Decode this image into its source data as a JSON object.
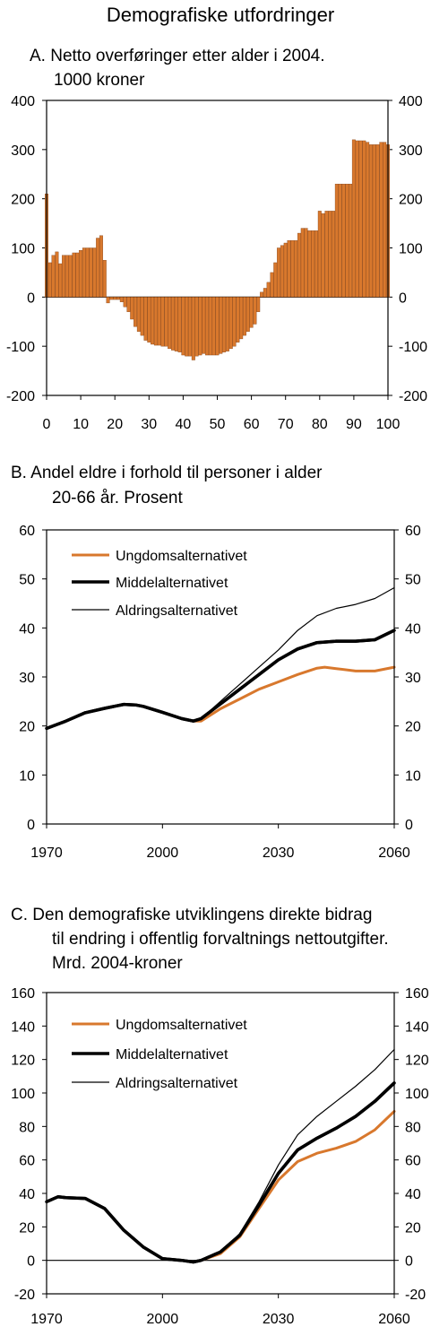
{
  "title": "Demografiske utfordringer",
  "charts": [
    {
      "id": "A",
      "title_lines": [
        "A.  Netto overføringer etter alder i 2004.",
        "1000 kroner"
      ],
      "chart_data": {
        "type": "bar",
        "xlabel": "",
        "ylabel": "",
        "xlim": [
          0,
          100
        ],
        "ylim": [
          -200,
          400
        ],
        "y_ticks": [
          -200,
          -100,
          0,
          100,
          200,
          300,
          400
        ],
        "x_ticks": [
          0,
          10,
          20,
          30,
          40,
          50,
          60,
          70,
          80,
          90,
          100
        ],
        "grid": false,
        "values": [
          210,
          70,
          85,
          92,
          68,
          85,
          85,
          85,
          90,
          90,
          95,
          100,
          100,
          100,
          100,
          120,
          125,
          75,
          -12,
          -5,
          -5,
          -5,
          -10,
          -20,
          -30,
          -45,
          -60,
          -70,
          -78,
          -88,
          -92,
          -96,
          -98,
          -98,
          -100,
          -100,
          -105,
          -108,
          -110,
          -112,
          -118,
          -120,
          -120,
          -128,
          -120,
          -118,
          -115,
          -118,
          -118,
          -118,
          -118,
          -115,
          -112,
          -110,
          -105,
          -100,
          -92,
          -85,
          -78,
          -70,
          -62,
          -55,
          -30,
          10,
          18,
          30,
          50,
          70,
          100,
          105,
          110,
          115,
          115,
          115,
          130,
          140,
          140,
          135,
          135,
          135,
          175,
          170,
          175,
          175,
          175,
          230,
          230,
          230,
          230,
          230,
          320,
          318,
          318,
          318,
          315,
          310,
          310,
          310,
          315,
          315,
          310
        ],
        "color": "#D8782D"
      }
    },
    {
      "id": "B",
      "title_lines": [
        "B.  Andel eldre i forhold til personer i alder",
        "20-66 år. Prosent"
      ],
      "chart_data": {
        "type": "line",
        "xlabel": "",
        "ylabel": "",
        "xlim": [
          1970,
          2060
        ],
        "ylim": [
          0,
          60
        ],
        "y_ticks": [
          0,
          10,
          20,
          30,
          40,
          50,
          60
        ],
        "x_ticks": [
          1970,
          2000,
          2030,
          2060
        ],
        "grid": false,
        "legend_position": "top-left",
        "series": [
          {
            "name": "Ungdomsalternativet",
            "color": "#D8782D",
            "width": 3,
            "x": [
              2008,
              2010,
              2015,
              2020,
              2025,
              2030,
              2035,
              2040,
              2042,
              2045,
              2050,
              2055,
              2060
            ],
            "y": [
              21,
              21,
              23.5,
              25.5,
              27.5,
              29,
              30.5,
              31.8,
              32,
              31.7,
              31.2,
              31.2,
              32
            ]
          },
          {
            "name": "Middelalternativet",
            "color": "#000000",
            "width": 3.5,
            "x": [
              1970,
              1975,
              1980,
              1985,
              1990,
              1993,
              1995,
              2000,
              2005,
              2008,
              2010,
              2015,
              2020,
              2025,
              2030,
              2035,
              2040,
              2045,
              2050,
              2055,
              2060
            ],
            "y": [
              19.5,
              21,
              22.7,
              23.6,
              24.4,
              24.3,
              24,
              22.8,
              21.5,
              21,
              21.5,
              24.5,
              27.5,
              30.5,
              33.5,
              35.7,
              37,
              37.3,
              37.3,
              37.6,
              39.5
            ]
          },
          {
            "name": "Aldringsalternativet",
            "color": "#000000",
            "width": 1.2,
            "x": [
              2008,
              2010,
              2015,
              2020,
              2025,
              2030,
              2035,
              2040,
              2045,
              2050,
              2055,
              2060
            ],
            "y": [
              21,
              21.5,
              25,
              28.5,
              32,
              35.5,
              39.5,
              42.5,
              44,
              44.8,
              46,
              48.2
            ]
          }
        ]
      }
    },
    {
      "id": "C",
      "title_lines": [
        "C.  Den demografiske utviklingens direkte bidrag",
        "til endring i offentlig forvaltnings nettoutgifter.",
        "Mrd. 2004-kroner"
      ],
      "chart_data": {
        "type": "line",
        "xlabel": "",
        "ylabel": "",
        "xlim": [
          1970,
          2060
        ],
        "ylim": [
          -20,
          160
        ],
        "y_ticks": [
          -20,
          0,
          20,
          40,
          60,
          80,
          100,
          120,
          140,
          160
        ],
        "x_ticks": [
          1970,
          2000,
          2030,
          2060
        ],
        "grid": false,
        "legend_position": "top-left",
        "series": [
          {
            "name": "Ungdomsalternativet",
            "color": "#D8782D",
            "width": 3,
            "x": [
              2010,
              2015,
              2020,
              2025,
              2030,
              2035,
              2040,
              2045,
              2050,
              2055,
              2060
            ],
            "y": [
              0,
              4,
              14,
              31,
              48,
              59,
              64,
              67,
              71,
              78,
              89
            ]
          },
          {
            "name": "Middelalternativet",
            "color": "#000000",
            "width": 3.5,
            "x": [
              1970,
              1973,
              1975,
              1980,
              1985,
              1990,
              1995,
              2000,
              2005,
              2008,
              2010,
              2015,
              2020,
              2025,
              2030,
              2035,
              2040,
              2045,
              2050,
              2055,
              2060
            ],
            "y": [
              35,
              38,
              37.5,
              37,
              31,
              18,
              8,
              1,
              0,
              -1,
              0,
              5,
              15,
              33,
              52,
              66,
              73,
              79,
              86,
              95,
              106
            ]
          },
          {
            "name": "Aldringsalternativet",
            "color": "#000000",
            "width": 1.2,
            "x": [
              2010,
              2015,
              2020,
              2025,
              2030,
              2035,
              2040,
              2045,
              2050,
              2055,
              2060
            ],
            "y": [
              0,
              5,
              16,
              35,
              57,
              75,
              86,
              95,
              104,
              114,
              126
            ]
          }
        ]
      }
    }
  ]
}
